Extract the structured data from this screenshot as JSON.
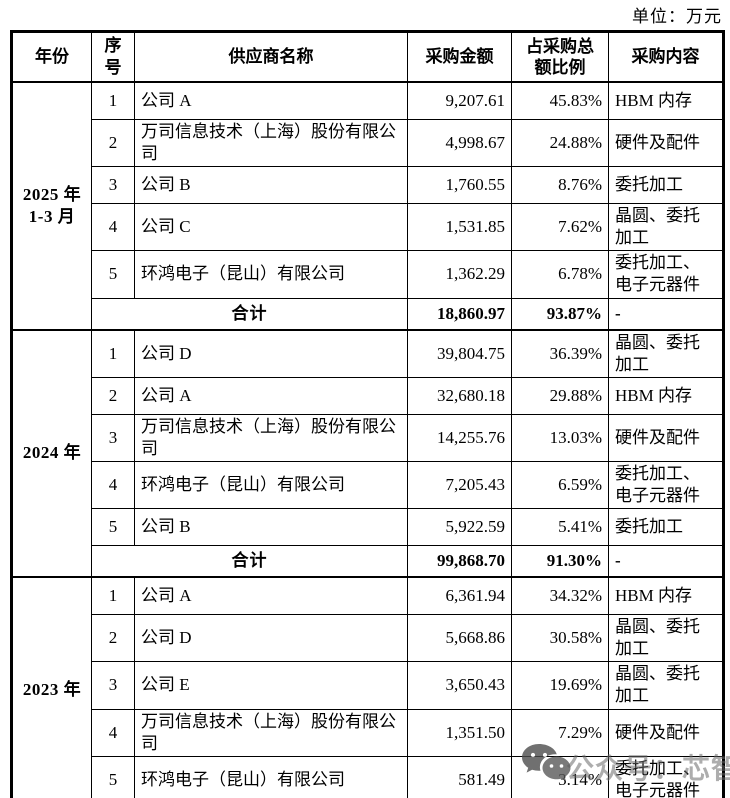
{
  "unit_label": "单位：万元",
  "table": {
    "headers": {
      "year": "年份",
      "no": "序号",
      "supplier": "供应商名称",
      "amount": "采购金额",
      "pct": "占采购总\n额比例",
      "content": "采购内容"
    },
    "total_label": "合计",
    "sections": [
      {
        "year": "2025 年\n1-3 月",
        "rows": [
          {
            "no": "1",
            "supplier": "公司 A",
            "amount": "9,207.61",
            "pct": "45.83%",
            "content": "HBM 内存"
          },
          {
            "no": "2",
            "supplier": "万司信息技术（上海）股份有限公司",
            "amount": "4,998.67",
            "pct": "24.88%",
            "content": "硬件及配件"
          },
          {
            "no": "3",
            "supplier": "公司 B",
            "amount": "1,760.55",
            "pct": "8.76%",
            "content": "委托加工"
          },
          {
            "no": "4",
            "supplier": "公司 C",
            "amount": "1,531.85",
            "pct": "7.62%",
            "content": "晶圆、委托加工"
          },
          {
            "no": "5",
            "supplier": "环鸿电子（昆山）有限公司",
            "amount": "1,362.29",
            "pct": "6.78%",
            "content": "委托加工、电子元器件"
          }
        ],
        "total": {
          "amount": "18,860.97",
          "pct": "93.87%",
          "content": "-"
        }
      },
      {
        "year": "2024 年",
        "rows": [
          {
            "no": "1",
            "supplier": "公司 D",
            "amount": "39,804.75",
            "pct": "36.39%",
            "content": "晶圆、委托加工"
          },
          {
            "no": "2",
            "supplier": "公司 A",
            "amount": "32,680.18",
            "pct": "29.88%",
            "content": "HBM 内存"
          },
          {
            "no": "3",
            "supplier": "万司信息技术（上海）股份有限公司",
            "amount": "14,255.76",
            "pct": "13.03%",
            "content": "硬件及配件"
          },
          {
            "no": "4",
            "supplier": "环鸿电子（昆山）有限公司",
            "amount": "7,205.43",
            "pct": "6.59%",
            "content": "委托加工、电子元器件"
          },
          {
            "no": "5",
            "supplier": "公司 B",
            "amount": "5,922.59",
            "pct": "5.41%",
            "content": "委托加工"
          }
        ],
        "total": {
          "amount": "99,868.70",
          "pct": "91.30%",
          "content": "-"
        }
      },
      {
        "year": "2023 年",
        "rows": [
          {
            "no": "1",
            "supplier": "公司 A",
            "amount": "6,361.94",
            "pct": "34.32%",
            "content": "HBM 内存"
          },
          {
            "no": "2",
            "supplier": "公司 D",
            "amount": "5,668.86",
            "pct": "30.58%",
            "content": "晶圆、委托加工"
          },
          {
            "no": "3",
            "supplier": "公司 E",
            "amount": "3,650.43",
            "pct": "19.69%",
            "content": "晶圆、委托加工"
          },
          {
            "no": "4",
            "supplier": "万司信息技术（上海）股份有限公司",
            "amount": "1,351.50",
            "pct": "7.29%",
            "content": "硬件及配件"
          },
          {
            "no": "5",
            "supplier": "环鸿电子（昆山）有限公司",
            "amount": "581.49",
            "pct": "3.14%",
            "content": "委托加工、电子元器件"
          }
        ],
        "total": null
      }
    ]
  },
  "watermark": {
    "icon": "wechat-icon",
    "text": "公众号：芯智讯",
    "color": "#696969"
  },
  "colors": {
    "border": "#000000",
    "background": "#ffffff",
    "text": "#000000"
  }
}
